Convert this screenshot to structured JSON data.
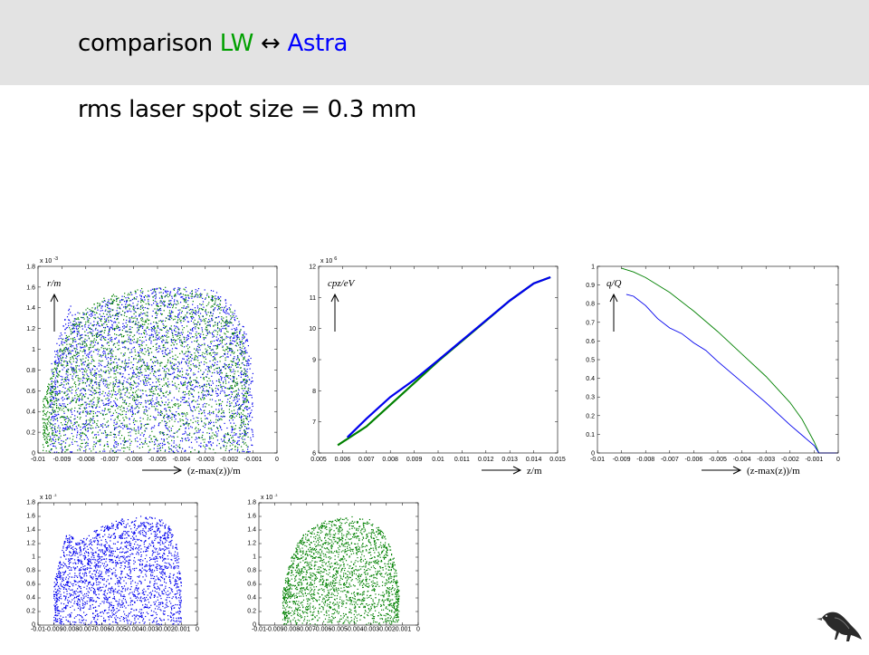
{
  "slide": {
    "title_prefix": "comparison",
    "title_lw": "LW",
    "title_arrow": "↔",
    "title_astra": "Astra",
    "subtitle": "rms laser spot size = 0.3 mm"
  },
  "colors": {
    "lw": "#0000ee",
    "astra": "#008000",
    "title_lw": "#00a000",
    "title_astra": "#0000ff"
  },
  "logo": "raven-logo",
  "chart_data": [
    {
      "id": "r-vs-z",
      "type": "scatter",
      "ylabel_annotation": "r/m",
      "xlabel_annotation": "(z-max(z))/m",
      "y_multiplier": "x 10",
      "y_exponent": "-3",
      "xlim": [
        -0.01,
        0
      ],
      "ylim": [
        0,
        1.8
      ],
      "x_ticks": [
        "-0.01",
        "-0.009",
        "-0.008",
        "-0.007",
        "-0.006",
        "-0.005",
        "-0.004",
        "-0.003",
        "-0.002",
        "-0.001",
        "0"
      ],
      "y_ticks": [
        "0",
        "0.2",
        "0.4",
        "0.6",
        "0.8",
        "1",
        "1.2",
        "1.4",
        "1.6",
        "1.8"
      ],
      "series": [
        {
          "color": "#0000ee",
          "envelope_x": [
            -0.0095,
            -0.009,
            -0.0088,
            -0.0086,
            -0.0085,
            -0.008,
            -0.007,
            -0.006,
            -0.005,
            -0.004,
            -0.003,
            -0.0025,
            -0.002,
            -0.0015,
            -0.0012,
            -0.001
          ],
          "envelope_y": [
            0.85,
            1.2,
            1.38,
            1.45,
            1.36,
            1.35,
            1.5,
            1.56,
            1.59,
            1.6,
            1.58,
            1.56,
            1.45,
            1.3,
            1.1,
            0.8
          ]
        },
        {
          "color": "#008000",
          "envelope_x": [
            -0.0098,
            -0.009,
            -0.0085,
            -0.008,
            -0.007,
            -0.006,
            -0.005,
            -0.004,
            -0.003,
            -0.0025,
            -0.002,
            -0.0015,
            -0.0013,
            -0.0012
          ],
          "envelope_y": [
            0.5,
            1.1,
            1.3,
            1.4,
            1.52,
            1.58,
            1.6,
            1.6,
            1.56,
            1.5,
            1.42,
            1.25,
            1.0,
            0.7
          ]
        }
      ]
    },
    {
      "id": "cpz-vs-z",
      "type": "line",
      "ylabel_annotation": "cpz/eV",
      "xlabel_annotation": "z/m",
      "y_multiplier": "x 10",
      "y_exponent": "6",
      "xlim": [
        0.005,
        0.015
      ],
      "ylim": [
        6,
        12
      ],
      "x_ticks": [
        "0.005",
        "0.006",
        "0.007",
        "0.008",
        "0.009",
        "0.01",
        "0.011",
        "0.012",
        "0.013",
        "0.014",
        "0.015"
      ],
      "y_ticks": [
        "6",
        "7",
        "8",
        "9",
        "10",
        "11",
        "12"
      ],
      "series": [
        {
          "color": "#008000",
          "x": [
            0.0058,
            0.007,
            0.008,
            0.009,
            0.01,
            0.011,
            0.012,
            0.013,
            0.014,
            0.0147
          ],
          "y": [
            6.25,
            6.85,
            7.55,
            8.25,
            8.95,
            9.6,
            10.25,
            10.9,
            11.45,
            11.65
          ]
        },
        {
          "color": "#0000ee",
          "x": [
            0.0062,
            0.007,
            0.008,
            0.009,
            0.01,
            0.011,
            0.012,
            0.013,
            0.014,
            0.0147
          ],
          "y": [
            6.5,
            7.1,
            7.8,
            8.35,
            8.98,
            9.62,
            10.26,
            10.9,
            11.45,
            11.65
          ]
        }
      ]
    },
    {
      "id": "q-vs-z",
      "type": "line",
      "ylabel_annotation": "q/Q",
      "xlabel_annotation": "(z-max(z))/m",
      "xlim": [
        -0.01,
        0
      ],
      "ylim": [
        0,
        1
      ],
      "x_ticks": [
        "-0.01",
        "-0.009",
        "-0.008",
        "-0.007",
        "-0.006",
        "-0.005",
        "-0.004",
        "-0.003",
        "-0.002",
        "-0.001",
        "0"
      ],
      "y_ticks": [
        "0",
        "0.1",
        "0.2",
        "0.3",
        "0.4",
        "0.5",
        "0.6",
        "0.7",
        "0.8",
        "0.9",
        "1"
      ],
      "series": [
        {
          "color": "#008000",
          "x": [
            -0.009,
            -0.0085,
            -0.008,
            -0.007,
            -0.006,
            -0.005,
            -0.004,
            -0.003,
            -0.002,
            -0.0015,
            -0.001,
            -0.0008,
            0
          ],
          "y": [
            0.99,
            0.97,
            0.94,
            0.86,
            0.76,
            0.65,
            0.53,
            0.41,
            0.27,
            0.18,
            0.06,
            0.0,
            0.0
          ]
        },
        {
          "color": "#0000ee",
          "x": [
            -0.0088,
            -0.0085,
            -0.008,
            -0.0075,
            -0.007,
            -0.0065,
            -0.006,
            -0.0055,
            -0.005,
            -0.004,
            -0.003,
            -0.002,
            -0.001,
            -0.0008,
            0
          ],
          "y": [
            0.85,
            0.84,
            0.79,
            0.72,
            0.67,
            0.64,
            0.59,
            0.55,
            0.49,
            0.38,
            0.27,
            0.15,
            0.04,
            0.0,
            0.0
          ]
        }
      ]
    },
    {
      "id": "lw-scatter",
      "type": "scatter",
      "y_multiplier": "x 10",
      "y_exponent": "-3",
      "xlim": [
        -0.01,
        0
      ],
      "ylim": [
        0,
        1.8
      ],
      "x_ticks": [
        "-0.01",
        "-0.009",
        "-0.008",
        "-0.007",
        "-0.006",
        "-0.005",
        "-0.004",
        "-0.003",
        "-0.002",
        "-0.001",
        "0"
      ],
      "y_ticks": [
        "0",
        "0.2",
        "0.4",
        "0.6",
        "0.8",
        "1",
        "1.2",
        "1.4",
        "1.6",
        "1.8"
      ],
      "series": [
        {
          "color": "#0000ee",
          "envelope_x": [
            -0.009,
            -0.0085,
            -0.0082,
            -0.0078,
            -0.0075,
            -0.007,
            -0.006,
            -0.005,
            -0.004,
            -0.003,
            -0.002,
            -0.0015,
            -0.0012,
            -0.001
          ],
          "envelope_y": [
            0.6,
            1.1,
            1.35,
            1.3,
            1.22,
            1.3,
            1.45,
            1.55,
            1.6,
            1.6,
            1.55,
            1.35,
            1.1,
            0.6
          ]
        }
      ]
    },
    {
      "id": "astra-scatter",
      "type": "scatter",
      "y_multiplier": "x 10",
      "y_exponent": "-3",
      "xlim": [
        -0.01,
        0
      ],
      "ylim": [
        0,
        1.8
      ],
      "x_ticks": [
        "-0.01",
        "-0.009",
        "-0.008",
        "-0.007",
        "-0.006",
        "-0.005",
        "-0.004",
        "-0.003",
        "-0.002",
        "-0.001",
        "0"
      ],
      "y_ticks": [
        "0",
        "0.2",
        "0.4",
        "0.6",
        "0.8",
        "1",
        "1.2",
        "1.4",
        "1.6",
        "1.8"
      ],
      "series": [
        {
          "color": "#008000",
          "envelope_x": [
            -0.0085,
            -0.008,
            -0.0075,
            -0.007,
            -0.006,
            -0.005,
            -0.004,
            -0.003,
            -0.0025,
            -0.002,
            -0.0015,
            -0.0012
          ],
          "envelope_y": [
            0.5,
            1.0,
            1.25,
            1.38,
            1.52,
            1.58,
            1.6,
            1.55,
            1.45,
            1.3,
            1.0,
            0.5
          ]
        }
      ]
    }
  ]
}
